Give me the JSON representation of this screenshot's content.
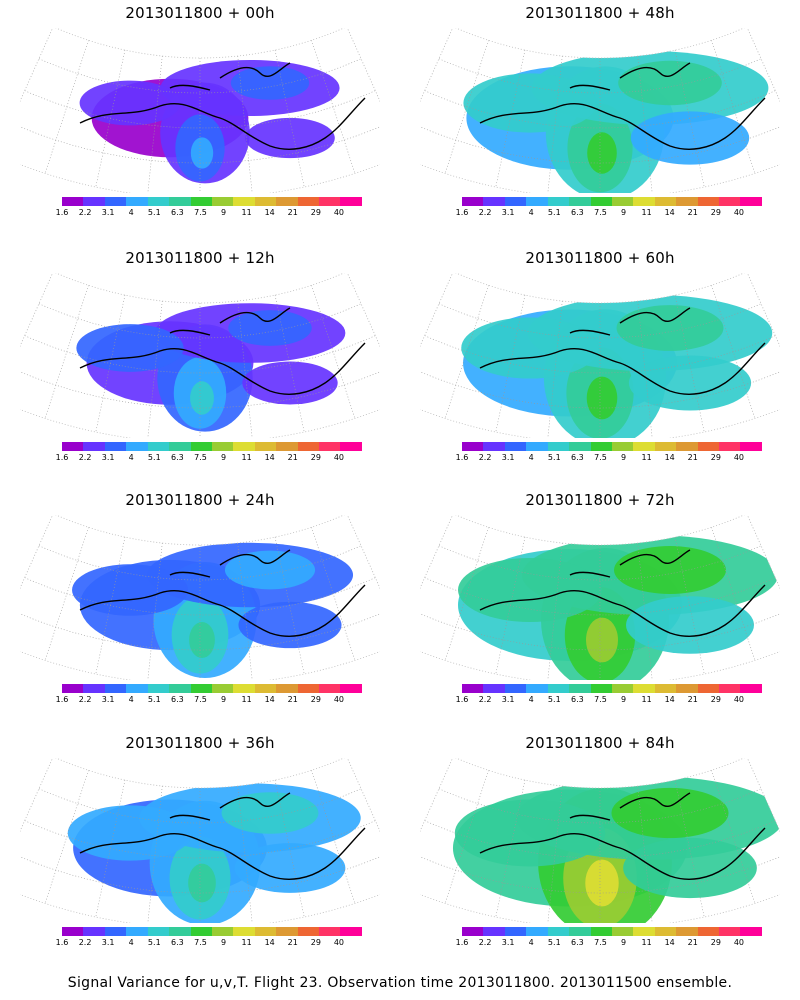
{
  "panels": [
    {
      "title": "2013011800 + 00h",
      "variance_level": 1
    },
    {
      "title": "2013011800 + 48h",
      "variance_level": 4
    },
    {
      "title": "2013011800 + 12h",
      "variance_level": 1.6
    },
    {
      "title": "2013011800 + 60h",
      "variance_level": 4.4
    },
    {
      "title": "2013011800 + 24h",
      "variance_level": 2.4
    },
    {
      "title": "2013011800 + 72h",
      "variance_level": 5
    },
    {
      "title": "2013011800 + 36h",
      "variance_level": 3.2
    },
    {
      "title": "2013011800 + 84h",
      "variance_level": 5.6
    }
  ],
  "colorbar": {
    "colors": [
      "#9900cc",
      "#6633ff",
      "#3366ff",
      "#33aaff",
      "#33cccc",
      "#33cc99",
      "#33cc33",
      "#99cc33",
      "#dddd33",
      "#ddbb33",
      "#dd9933",
      "#ee6633",
      "#ff3366",
      "#ff0099"
    ],
    "labels": [
      "1.6",
      "2.2",
      "3.1",
      "4",
      "5.1",
      "6.3",
      "7.5",
      "9",
      "11",
      "14",
      "21",
      "29",
      "40"
    ]
  },
  "caption": "Signal Variance for u,v,T. Flight 23. Observation time 2013011800. 2013011500 ensemble."
}
